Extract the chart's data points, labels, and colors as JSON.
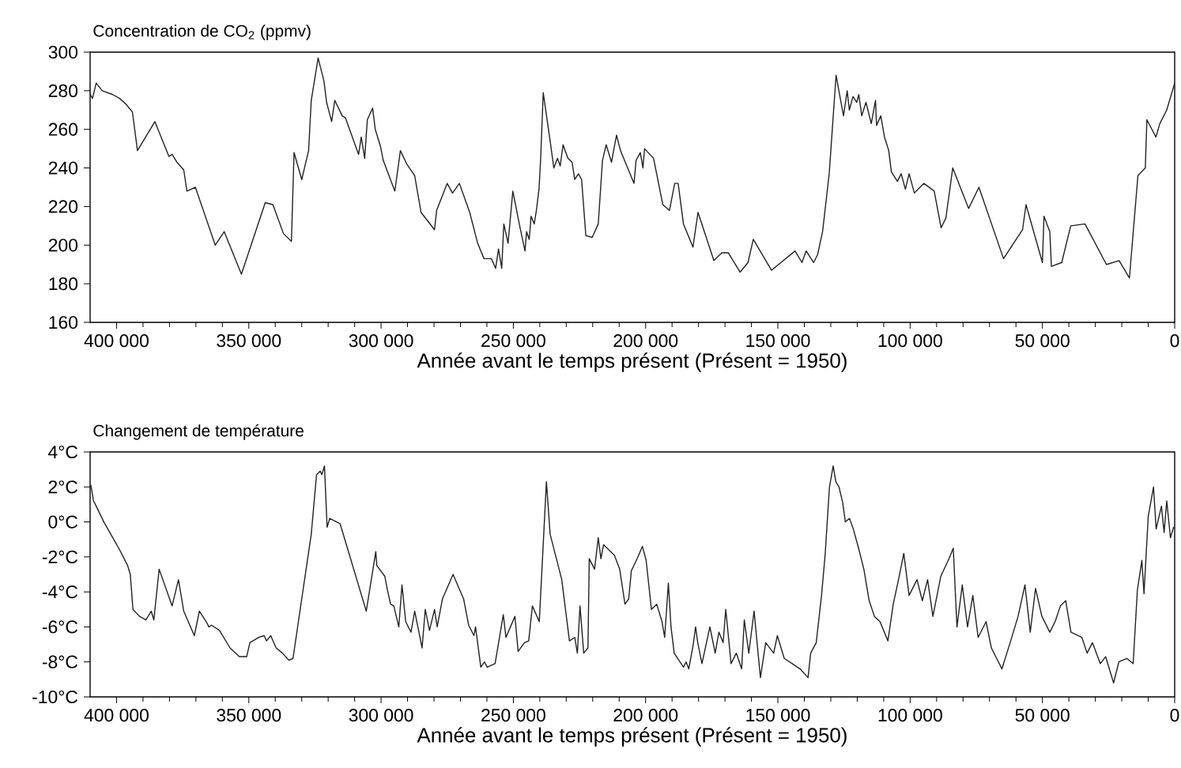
{
  "chart_data": [
    {
      "type": "line",
      "title": "Concentration de CO$_{2}$ (ppmv)",
      "xlabel": "Année avant le temps présent (Présent = 1950)",
      "color": "#222222",
      "xlim": [
        410000,
        0
      ],
      "ylim": [
        160,
        300
      ],
      "xticks": [
        {
          "value": 400000,
          "label": "400 000"
        },
        {
          "value": 350000,
          "label": "350 000"
        },
        {
          "value": 300000,
          "label": "300 000"
        },
        {
          "value": 250000,
          "label": "250 000"
        },
        {
          "value": 200000,
          "label": "200 000"
        },
        {
          "value": 150000,
          "label": "150 000"
        },
        {
          "value": 100000,
          "label": "100 000"
        },
        {
          "value": 50000,
          "label": "50 000"
        },
        0
      ],
      "yticks": [
        160,
        180,
        200,
        220,
        240,
        260,
        280,
        300
      ],
      "x": [
        409900,
        409100,
        407700,
        405400,
        401400,
        398800,
        396400,
        394000,
        392100,
        385500,
        380200,
        379000,
        377200,
        374600,
        373400,
        370200,
        362700,
        359300,
        352800,
        343800,
        340900,
        336900,
        333900,
        332900,
        330000,
        327400,
        326400,
        323800,
        321600,
        320600,
        318700,
        317500,
        314700,
        313500,
        308500,
        307500,
        306200,
        305200,
        303200,
        302200,
        300200,
        299200,
        294800,
        292700,
        290300,
        287300,
        284900,
        279800,
        279000,
        275000,
        273000,
        270400,
        266500,
        263500,
        261100,
        258300,
        256700,
        255600,
        254400,
        253600,
        252000,
        250200,
        247600,
        245600,
        245000,
        244000,
        243300,
        242100,
        241300,
        240300,
        239700,
        238700,
        236100,
        234700,
        233300,
        232300,
        231200,
        229400,
        227800,
        226800,
        225400,
        224200,
        222600,
        220200,
        217900,
        216300,
        214900,
        212900,
        211000,
        209500,
        204400,
        203600,
        202000,
        201000,
        200400,
        197000,
        193500,
        191000,
        189000,
        187700,
        185700,
        182100,
        180200,
        174200,
        171200,
        168700,
        164300,
        161300,
        159300,
        152400,
        143500,
        140900,
        139300,
        136500,
        135000,
        133100,
        130600,
        128000,
        125200,
        123800,
        123000,
        121600,
        120200,
        119400,
        118300,
        116700,
        114700,
        113100,
        112700,
        111100,
        109700,
        108100,
        107100,
        104800,
        103400,
        101800,
        100400,
        98400,
        94800,
        90900,
        88300,
        86500,
        83900,
        77900,
        74000,
        64700,
        57500,
        56200,
        50000,
        49400,
        47200,
        46600,
        42700,
        39300,
        33900,
        25800,
        21000,
        17100,
        13900,
        11100,
        10500,
        7100,
        5600,
        3000,
        0
      ],
      "values": [
        278,
        276,
        284,
        280,
        278,
        276,
        273,
        269,
        249,
        264,
        246,
        247,
        243,
        239,
        228,
        230,
        200,
        207,
        185,
        222,
        221,
        206,
        202,
        248,
        234,
        249,
        275,
        297,
        285,
        274,
        264,
        275,
        267,
        266,
        247,
        256,
        245,
        265,
        271,
        260,
        251,
        244,
        228,
        249,
        242,
        236,
        217,
        208,
        218,
        232,
        227,
        232,
        217,
        201,
        193,
        193,
        188,
        198,
        188,
        211,
        201,
        228,
        210,
        197,
        207,
        203,
        215,
        211,
        218,
        229,
        244,
        279,
        254,
        240,
        245,
        241,
        252,
        245,
        243,
        234,
        237,
        234,
        205,
        204,
        211,
        244,
        252,
        243,
        257,
        249,
        232,
        244,
        248,
        240,
        250,
        245,
        221,
        218,
        232,
        232,
        211,
        199,
        217,
        192,
        196,
        196,
        186,
        191,
        203,
        187,
        197,
        191,
        197,
        191,
        195,
        207,
        237,
        288,
        267,
        280,
        270,
        277,
        274,
        278,
        267,
        274,
        263,
        275,
        262,
        267,
        256,
        249,
        238,
        233,
        237,
        229,
        237,
        227,
        232,
        228,
        209,
        214,
        240,
        219,
        230,
        193,
        208,
        221,
        191,
        215,
        207,
        189,
        191,
        210,
        211,
        190,
        192,
        183,
        236,
        240,
        265,
        256,
        263,
        270,
        284
      ]
    },
    {
      "type": "line",
      "title": "Changement de température",
      "xlabel": "Année avant le temps présent (Présent = 1950)",
      "color": "#222222",
      "xlim": [
        410000,
        0
      ],
      "ylim": [
        -10,
        4
      ],
      "xticks": [
        {
          "value": 400000,
          "label": "400 000"
        },
        {
          "value": 350000,
          "label": "350 000"
        },
        {
          "value": 300000,
          "label": "300 000"
        },
        {
          "value": 250000,
          "label": "250 000"
        },
        {
          "value": 200000,
          "label": "200 000"
        },
        {
          "value": 150000,
          "label": "150 000"
        },
        {
          "value": 100000,
          "label": "100 000"
        },
        {
          "value": 50000,
          "label": "50 000"
        },
        0
      ],
      "yticks": [
        {
          "value": 4,
          "label": "4°C"
        },
        {
          "value": 2,
          "label": "2°C"
        },
        {
          "value": 0,
          "label": "0°C"
        },
        {
          "value": -2,
          "label": "-2°C"
        },
        {
          "value": -4,
          "label": "-4°C"
        },
        {
          "value": -6,
          "label": "-6°C"
        },
        {
          "value": -8,
          "label": "-8°C"
        },
        {
          "value": -10,
          "label": "-10°C"
        }
      ],
      "x": [
        409700,
        408700,
        407700,
        404800,
        401800,
        398800,
        395800,
        394800,
        393800,
        391300,
        388900,
        386900,
        385900,
        383900,
        379000,
        376600,
        374600,
        370600,
        368700,
        366100,
        365100,
        364100,
        361100,
        357100,
        353600,
        350800,
        349600,
        346200,
        344200,
        343300,
        341700,
        339700,
        337300,
        334900,
        333300,
        326400,
        324400,
        323000,
        322400,
        321400,
        320400,
        319400,
        315500,
        305600,
        302000,
        301600,
        298600,
        297600,
        296400,
        295200,
        293300,
        292100,
        290700,
        288700,
        287300,
        286100,
        284500,
        283300,
        281700,
        279800,
        278800,
        276800,
        272800,
        268800,
        266900,
        264900,
        264300,
        262300,
        260900,
        259900,
        256900,
        253800,
        252800,
        249400,
        248200,
        245800,
        244200,
        242800,
        240200,
        237500,
        236100,
        231700,
        228800,
        226800,
        225800,
        224800,
        223400,
        221800,
        221300,
        219300,
        217900,
        216900,
        215900,
        213900,
        211800,
        209800,
        207800,
        206400,
        205400,
        203200,
        201200,
        199800,
        197800,
        195800,
        193800,
        192800,
        191400,
        190400,
        189200,
        185700,
        184700,
        183700,
        182100,
        181100,
        180300,
        178700,
        175700,
        173700,
        172300,
        170700,
        169700,
        167700,
        165700,
        163700,
        162700,
        161000,
        159000,
        156600,
        154600,
        151600,
        150200,
        147600,
        144600,
        141600,
        138600,
        137600,
        135500,
        133500,
        132100,
        130500,
        129100,
        128100,
        126900,
        125500,
        124500,
        122900,
        121500,
        119500,
        117500,
        115500,
        113500,
        111400,
        108400,
        106400,
        104400,
        102400,
        100400,
        97400,
        95400,
        93400,
        91400,
        88400,
        85300,
        83700,
        82300,
        80300,
        78300,
        76300,
        74300,
        71300,
        69300,
        67300,
        65300,
        62200,
        59200,
        56600,
        54600,
        52600,
        50200,
        47200,
        45200,
        43200,
        41200,
        39200,
        35100,
        33100,
        31100,
        28100,
        26100,
        23100,
        21100,
        18100,
        15700,
        14100,
        12400,
        11600,
        10000,
        8000,
        7000,
        5000,
        4000,
        3000,
        1600,
        400
      ],
      "values": [
        2.1,
        1.2,
        0.9,
        0,
        -0.8,
        -1.6,
        -2.5,
        -3.0,
        -5.0,
        -5.4,
        -5.6,
        -5.1,
        -5.6,
        -2.7,
        -4.8,
        -3.3,
        -5.1,
        -6.5,
        -5.1,
        -5.7,
        -6.0,
        -5.9,
        -6.2,
        -7.2,
        -7.7,
        -7.7,
        -6.9,
        -6.6,
        -6.5,
        -6.8,
        -6.5,
        -7.2,
        -7.5,
        -7.9,
        -7.8,
        -0.7,
        2.7,
        2.9,
        2.7,
        3.2,
        -0.3,
        0.2,
        -0.1,
        -5.1,
        -1.7,
        -2.5,
        -3.1,
        -3.9,
        -4.7,
        -4.8,
        -6.0,
        -3.6,
        -5.7,
        -6.3,
        -5.1,
        -6.0,
        -7.2,
        -5.0,
        -6.2,
        -5.0,
        -6.0,
        -4.4,
        -3.0,
        -4.4,
        -5.9,
        -6.5,
        -6.0,
        -8.3,
        -8.0,
        -8.3,
        -8.1,
        -5.3,
        -6.6,
        -5.4,
        -7.4,
        -6.9,
        -6.8,
        -4.8,
        -5.7,
        2.3,
        -0.7,
        -3.3,
        -6.8,
        -6.6,
        -7.5,
        -4.8,
        -7.5,
        -7.2,
        -2.1,
        -2.7,
        -0.9,
        -2.1,
        -1.3,
        -1.6,
        -1.9,
        -2.7,
        -4.7,
        -4.4,
        -2.8,
        -2.1,
        -1.4,
        -2.2,
        -5.0,
        -4.7,
        -5.7,
        -6.6,
        -3.5,
        -6.0,
        -7.5,
        -8.3,
        -8.0,
        -8.4,
        -7.1,
        -6.0,
        -6.9,
        -8.1,
        -6.0,
        -7.5,
        -6.3,
        -6.9,
        -5.0,
        -8.1,
        -7.5,
        -8.4,
        -5.6,
        -7.5,
        -5.1,
        -8.9,
        -6.9,
        -7.5,
        -6.5,
        -7.8,
        -8.1,
        -8.4,
        -8.9,
        -7.5,
        -6.9,
        -4.2,
        -1.8,
        2.0,
        3.2,
        2.3,
        2.0,
        1.1,
        0,
        0.2,
        -0.4,
        -1.5,
        -2.7,
        -4.5,
        -5.4,
        -5.7,
        -6.8,
        -4.7,
        -3.3,
        -1.8,
        -4.2,
        -3.3,
        -4.5,
        -3.3,
        -5.4,
        -3.1,
        -2.1,
        -1.5,
        -6.0,
        -3.6,
        -6.0,
        -4.2,
        -6.6,
        -5.7,
        -7.2,
        -7.8,
        -8.4,
        -6.9,
        -5.4,
        -3.6,
        -6.3,
        -3.8,
        -5.4,
        -6.3,
        -5.7,
        -4.8,
        -4.5,
        -6.3,
        -6.6,
        -7.5,
        -6.9,
        -8.1,
        -7.7,
        -9.2,
        -8.0,
        -7.8,
        -8.1,
        -3.9,
        -2.2,
        -4.1,
        0.3,
        2.0,
        -0.4,
        0.9,
        -0.6,
        1.2,
        -0.9,
        -0.3
      ]
    }
  ]
}
